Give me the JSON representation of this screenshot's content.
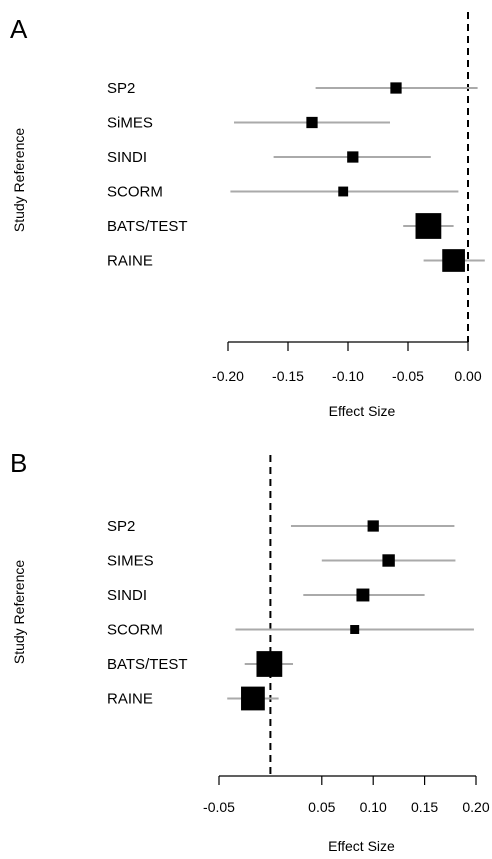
{
  "chart_data": [
    {
      "type": "forest",
      "panel_label": "A",
      "ylabel": "Study Reference",
      "xlabel": "Effect Size",
      "xlim": [
        -0.2,
        0.01
      ],
      "reference_line": 0.0,
      "ticks": [
        -0.2,
        -0.15,
        -0.1,
        -0.05,
        0.0
      ],
      "tick_labels": [
        "-0.20",
        "-0.15",
        "-0.10",
        "-0.05",
        "0.00"
      ],
      "studies": [
        {
          "label": "SP2",
          "estimate": -0.06,
          "ci": [
            -0.127,
            0.008
          ],
          "weight": 0.05
        },
        {
          "label": "SiMES",
          "estimate": -0.13,
          "ci": [
            -0.195,
            -0.065
          ],
          "weight": 0.05
        },
        {
          "label": "SINDI",
          "estimate": -0.096,
          "ci": [
            -0.162,
            -0.031
          ],
          "weight": 0.05
        },
        {
          "label": "SCORM",
          "estimate": -0.104,
          "ci": [
            -0.198,
            -0.008
          ],
          "weight": 0.03
        },
        {
          "label": "BATS/TEST",
          "estimate": -0.033,
          "ci": [
            -0.054,
            -0.012
          ],
          "weight": 0.55
        },
        {
          "label": "RAINE",
          "estimate": -0.012,
          "ci": [
            -0.037,
            0.014
          ],
          "weight": 0.4
        }
      ]
    },
    {
      "type": "forest",
      "panel_label": "B",
      "ylabel": "Study Reference",
      "xlabel": "Effect Size",
      "xlim": [
        -0.05,
        0.21
      ],
      "reference_line": 0.0,
      "ticks": [
        -0.05,
        0.05,
        0.1,
        0.15,
        0.2
      ],
      "tick_labels": [
        "-0.05",
        "0.05",
        "0.10",
        "0.15",
        "0.20"
      ],
      "studies": [
        {
          "label": "SP2",
          "estimate": 0.1,
          "ci": [
            0.02,
            0.179
          ],
          "weight": 0.05
        },
        {
          "label": "SIMES",
          "estimate": 0.115,
          "ci": [
            0.05,
            0.18
          ],
          "weight": 0.07
        },
        {
          "label": "SINDI",
          "estimate": 0.09,
          "ci": [
            0.032,
            0.15
          ],
          "weight": 0.08
        },
        {
          "label": "SCORM",
          "estimate": 0.082,
          "ci": [
            -0.034,
            0.198
          ],
          "weight": 0.02
        },
        {
          "label": "BATS/TEST",
          "estimate": -0.001,
          "ci": [
            -0.025,
            0.022
          ],
          "weight": 0.55
        },
        {
          "label": "RAINE",
          "estimate": -0.017,
          "ci": [
            -0.042,
            0.008
          ],
          "weight": 0.45
        }
      ]
    }
  ]
}
